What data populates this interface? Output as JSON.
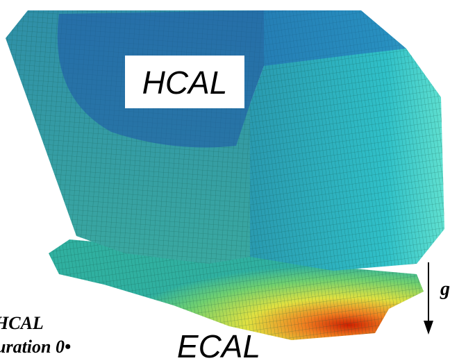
{
  "labels": {
    "hcal": "HCAL",
    "ecal": "ECAL",
    "gravity": "g",
    "caption_line1": "HCAL",
    "caption_line2": "uration 0•"
  }
}
